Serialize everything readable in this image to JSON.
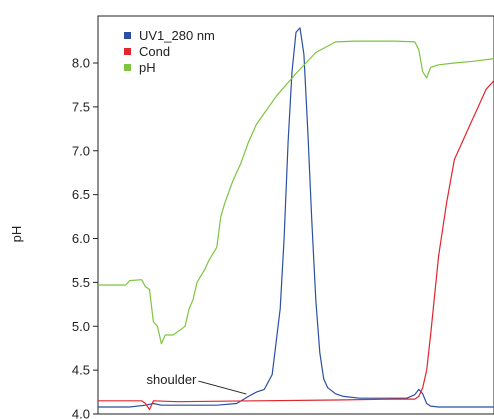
{
  "chart_data": {
    "type": "line",
    "title": "",
    "xlabel": "",
    "ylabel": "pH",
    "ylim": [
      4.0,
      8.5
    ],
    "xlim": [
      0,
      100
    ],
    "yticks": [
      "4.0",
      "4.5",
      "5.0",
      "5.5",
      "6.0",
      "6.5",
      "7.0",
      "7.5",
      "8.0"
    ],
    "ytick_values": [
      4.0,
      4.5,
      5.0,
      5.5,
      6.0,
      6.5,
      7.0,
      7.5,
      8.0
    ],
    "grid": false,
    "legend_position": "top-left",
    "series": [
      {
        "name": "UV1_280 nm",
        "color": "#2b4fa2",
        "x": [
          0,
          5,
          8,
          12,
          14,
          16,
          20,
          30,
          35,
          38,
          40,
          42,
          44,
          46,
          47,
          48,
          49,
          50,
          51,
          52,
          53,
          54,
          55,
          56,
          57,
          58,
          60,
          62,
          66,
          70,
          78,
          80,
          81,
          82,
          83,
          84,
          86,
          90,
          100
        ],
        "y": [
          4.08,
          4.08,
          4.08,
          4.1,
          4.12,
          4.1,
          4.1,
          4.1,
          4.12,
          4.2,
          4.25,
          4.28,
          4.45,
          5.2,
          6.0,
          7.1,
          7.9,
          8.35,
          8.4,
          8.1,
          7.2,
          6.2,
          5.3,
          4.7,
          4.4,
          4.3,
          4.23,
          4.2,
          4.18,
          4.18,
          4.18,
          4.22,
          4.28,
          4.23,
          4.12,
          4.09,
          4.08,
          4.08,
          4.08
        ]
      },
      {
        "name": "Cond",
        "color": "#e0262f",
        "x": [
          0,
          10,
          11,
          12,
          13,
          14,
          20,
          40,
          60,
          75,
          80,
          81,
          82,
          83,
          84,
          86,
          88,
          90,
          92,
          94,
          96,
          98,
          100
        ],
        "y": [
          4.15,
          4.15,
          4.15,
          4.12,
          4.05,
          4.15,
          4.14,
          4.15,
          4.16,
          4.17,
          4.17,
          4.2,
          4.3,
          4.5,
          4.9,
          5.8,
          6.4,
          6.9,
          7.1,
          7.3,
          7.5,
          7.7,
          7.8
        ]
      },
      {
        "name": "pH",
        "color": "#7ec440",
        "x": [
          0,
          7,
          8,
          11,
          12,
          13,
          14,
          15,
          16,
          17,
          19,
          22,
          23,
          24,
          25,
          27,
          28,
          30,
          31,
          32,
          34,
          36,
          38,
          40,
          45,
          50,
          55,
          60,
          65,
          70,
          75,
          80,
          81,
          82,
          83,
          84,
          86,
          90,
          95,
          100
        ],
        "y": [
          5.47,
          5.47,
          5.52,
          5.53,
          5.45,
          5.42,
          5.05,
          5.0,
          4.8,
          4.9,
          4.9,
          5.0,
          5.2,
          5.3,
          5.5,
          5.65,
          5.75,
          5.9,
          6.25,
          6.4,
          6.65,
          6.85,
          7.1,
          7.3,
          7.62,
          7.88,
          8.12,
          8.24,
          8.25,
          8.25,
          8.25,
          8.24,
          8.15,
          7.9,
          7.83,
          7.95,
          7.98,
          8.0,
          8.02,
          8.05
        ]
      }
    ],
    "annotations": [
      {
        "text": "shoulder",
        "x": 40,
        "y": 4.25
      }
    ]
  }
}
